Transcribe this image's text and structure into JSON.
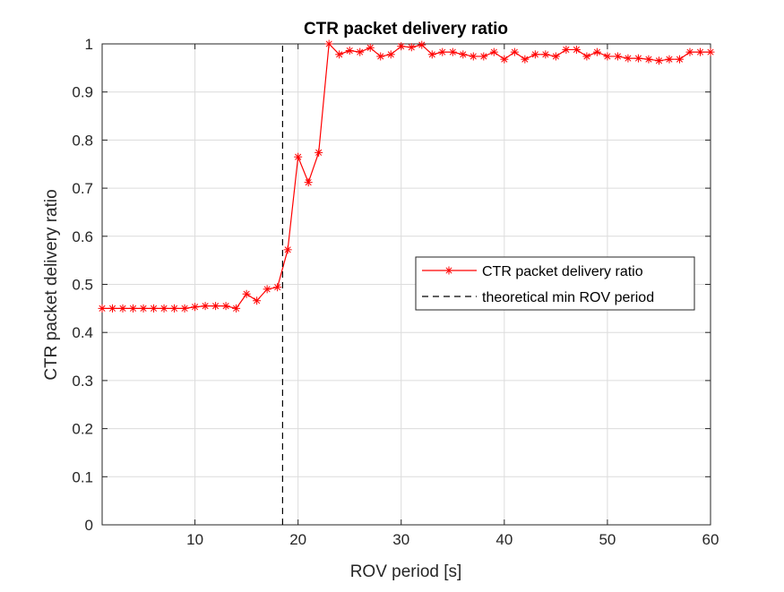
{
  "chart_data": {
    "type": "line",
    "title": "CTR packet delivery ratio",
    "xlabel": "ROV period [s]",
    "ylabel": "CTR packet delivery ratio",
    "xlim": [
      1,
      60
    ],
    "ylim": [
      0,
      1
    ],
    "xticks": [
      10,
      20,
      30,
      40,
      50,
      60
    ],
    "yticks": [
      0,
      0.1,
      0.2,
      0.3,
      0.4,
      0.5,
      0.6,
      0.7,
      0.8,
      0.9,
      1
    ],
    "xtick_labels": [
      "10",
      "20",
      "30",
      "40",
      "50",
      "60"
    ],
    "ytick_labels": [
      "0",
      "0.1",
      "0.2",
      "0.3",
      "0.4",
      "0.5",
      "0.6",
      "0.7",
      "0.8",
      "0.9",
      "1"
    ],
    "grid": true,
    "legend_position": "center-right",
    "series": [
      {
        "name": "CTR packet delivery ratio",
        "color": "#ff0000",
        "line_style": "solid",
        "marker": "asterisk",
        "x": [
          1,
          2,
          3,
          4,
          5,
          6,
          7,
          8,
          9,
          10,
          11,
          12,
          13,
          14,
          15,
          16,
          17,
          18,
          19,
          20,
          21,
          22,
          23,
          24,
          25,
          26,
          27,
          28,
          29,
          30,
          31,
          32,
          33,
          34,
          35,
          36,
          37,
          38,
          39,
          40,
          41,
          42,
          43,
          44,
          45,
          46,
          47,
          48,
          49,
          50,
          51,
          52,
          53,
          54,
          55,
          56,
          57,
          58,
          59,
          60
        ],
        "y": [
          0.45,
          0.45,
          0.45,
          0.45,
          0.45,
          0.45,
          0.45,
          0.45,
          0.45,
          0.453,
          0.455,
          0.455,
          0.455,
          0.45,
          0.48,
          0.466,
          0.49,
          0.494,
          0.572,
          0.765,
          0.712,
          0.774,
          1.0,
          0.978,
          0.986,
          0.983,
          0.992,
          0.974,
          0.978,
          0.995,
          0.993,
          0.998,
          0.978,
          0.983,
          0.983,
          0.978,
          0.974,
          0.974,
          0.983,
          0.968,
          0.983,
          0.968,
          0.978,
          0.978,
          0.974,
          0.988,
          0.988,
          0.974,
          0.983,
          0.974,
          0.974,
          0.97,
          0.97,
          0.968,
          0.965,
          0.968,
          0.968,
          0.983,
          0.983,
          0.983
        ]
      },
      {
        "name": "theoretical min ROV period",
        "color": "#000000",
        "line_style": "dashed",
        "marker": "none",
        "x": [
          18.5,
          18.5
        ],
        "y": [
          0,
          1
        ]
      }
    ]
  }
}
